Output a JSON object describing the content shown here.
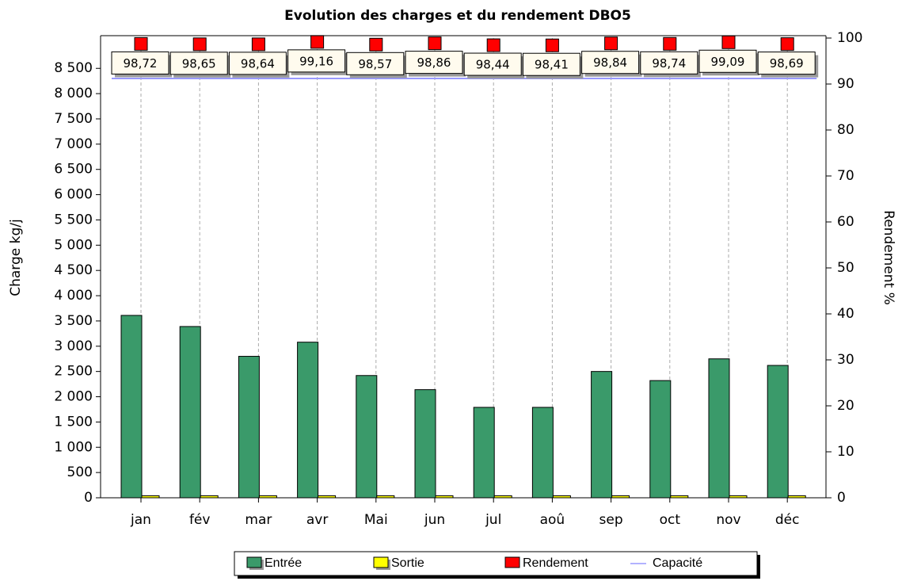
{
  "chart_data": {
    "type": "bar",
    "title": "Evolution des charges et du rendement DBO5",
    "y_label": "Charge kg/j",
    "y2_label": "Rendement %",
    "categories": [
      "jan",
      "fév",
      "mar",
      "avr",
      "Mai",
      "jun",
      "jul",
      "aoû",
      "sep",
      "oct",
      "nov",
      "déc"
    ],
    "series": [
      {
        "name": "Entrée",
        "color": "#3a9a6a",
        "kind": "bar",
        "values": [
          3610,
          3390,
          2800,
          3080,
          2420,
          2140,
          1790,
          1790,
          2500,
          2320,
          2750,
          2620
        ]
      },
      {
        "name": "Sortie",
        "color": "#ffff00",
        "kind": "bar",
        "values": [
          40,
          40,
          40,
          40,
          40,
          40,
          40,
          40,
          40,
          40,
          40,
          40
        ]
      },
      {
        "name": "Rendement",
        "color": "#ff0000",
        "kind": "marker",
        "axis": "y2",
        "values": [
          98.72,
          98.65,
          98.64,
          99.16,
          98.57,
          98.86,
          98.44,
          98.41,
          98.84,
          98.74,
          99.09,
          98.69
        ],
        "value_labels": [
          "98,72",
          "98,65",
          "98,64",
          "99,16",
          "98,57",
          "98,86",
          "98,44",
          "98,41",
          "98,84",
          "98,74",
          "99,09",
          "98,69"
        ]
      },
      {
        "name": "Capacité",
        "color": "#9999ff",
        "kind": "line",
        "values": [
          8300,
          8300,
          8300,
          8300,
          8300,
          8300,
          8300,
          8300,
          8300,
          8300,
          8300,
          8300
        ]
      }
    ],
    "ylim": [
      0,
      9100
    ],
    "yticks": [
      0,
      500,
      {
        "value": 1000,
        "label": "1 000"
      },
      {
        "value": 1500,
        "label": "1 500"
      },
      {
        "value": 2000,
        "label": "2 000"
      },
      {
        "value": 2500,
        "label": "2 500"
      },
      {
        "value": 3000,
        "label": "3 000"
      },
      {
        "value": 3500,
        "label": "3 500"
      },
      {
        "value": 4000,
        "label": "4 000"
      },
      {
        "value": 4500,
        "label": "4 500"
      },
      {
        "value": 5000,
        "label": "5 000"
      },
      {
        "value": 5500,
        "label": "5 500"
      },
      {
        "value": 6000,
        "label": "6 000"
      },
      {
        "value": 6500,
        "label": "6 500"
      },
      {
        "value": 7000,
        "label": "7 000"
      },
      {
        "value": 7500,
        "label": "7 500"
      },
      {
        "value": 8000,
        "label": "8 000"
      },
      {
        "value": 8500,
        "label": "8 500"
      }
    ],
    "y2lim": [
      0,
      100
    ],
    "y2ticks": [
      0,
      10,
      20,
      30,
      40,
      50,
      60,
      70,
      80,
      90,
      100
    ],
    "grid": true,
    "legend": "bottom"
  }
}
